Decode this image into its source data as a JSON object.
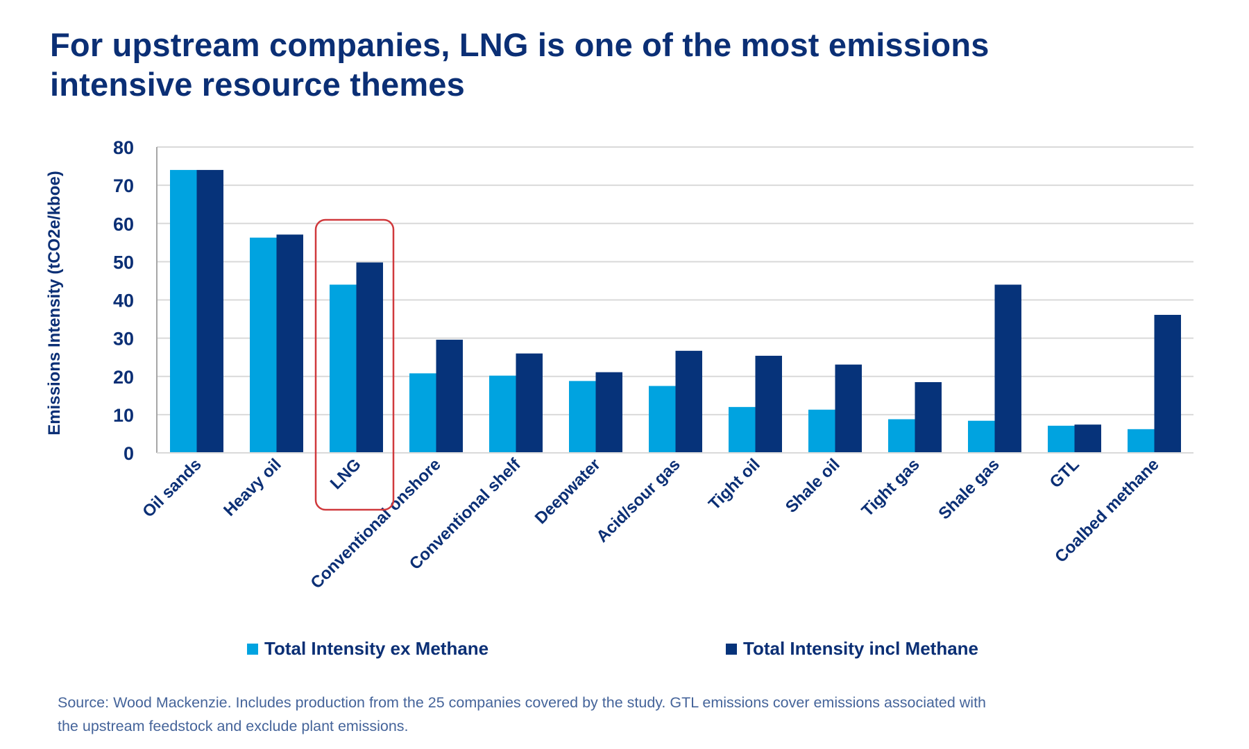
{
  "title": {
    "line1": "For upstream companies, LNG is one of the most emissions",
    "line2": "intensive resource themes"
  },
  "colors": {
    "title": "#0b2f75",
    "ex_methane": "#00a3e0",
    "incl_methane": "#06337a",
    "highlight": "#d0393c",
    "grid": "#d9d9d9",
    "axis": "#a6a6a6",
    "source_text": "#45649a"
  },
  "chart_data": {
    "type": "bar",
    "title": "For upstream companies, LNG is one of the most emissions intensive resource themes",
    "xlabel": "",
    "ylabel": "Emissions Intensity  (tCO2e/kboe)",
    "ylim": [
      0,
      80
    ],
    "yticks": [
      0,
      10,
      20,
      30,
      40,
      50,
      60,
      70,
      80
    ],
    "grid": true,
    "legend_position": "bottom",
    "categories": [
      "Oil sands",
      "Heavy oil",
      "LNG",
      "Conventional onshore",
      "Conventional shelf",
      "Deepwater",
      "Acid/sour gas",
      "Tight oil",
      "Shale oil",
      "Tight gas",
      "Shale gas",
      "GTL",
      "Coalbed methane"
    ],
    "series": [
      {
        "name": "Total Intensity ex Methane",
        "values": [
          74.0,
          56.3,
          44.0,
          20.8,
          20.2,
          18.8,
          17.5,
          12.0,
          11.3,
          8.8,
          8.4,
          7.1,
          6.2
        ]
      },
      {
        "name": "Total Intensity incl Methane",
        "values": [
          74.0,
          57.1,
          49.8,
          29.6,
          26.0,
          21.1,
          26.7,
          25.4,
          23.1,
          18.5,
          44.0,
          7.4,
          36.1
        ]
      }
    ],
    "highlighted_category": "LNG"
  },
  "legend": {
    "items": [
      {
        "label": "Total Intensity ex Methane"
      },
      {
        "label": "Total Intensity incl Methane"
      }
    ]
  },
  "source": {
    "line1": "Source: Wood Mackenzie. Includes production from the 25 companies covered by the study. GTL emissions cover emissions associated with",
    "line2": "the upstream feedstock and exclude plant emissions."
  }
}
